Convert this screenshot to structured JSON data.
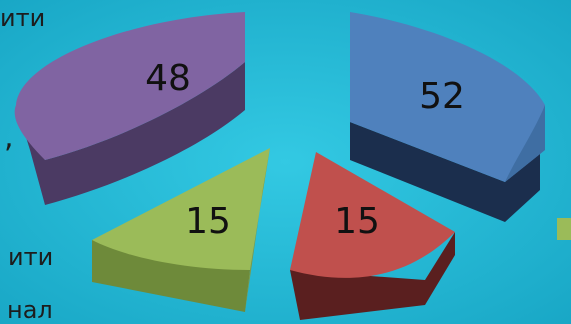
{
  "chart_data": {
    "type": "pie",
    "title": "",
    "slices": [
      {
        "label": "",
        "value": 52,
        "color": "#4f81bd"
      },
      {
        "label": "",
        "value": 15,
        "color": "#c0504d"
      },
      {
        "label": "",
        "value": 15,
        "color": "#9bbb59"
      },
      {
        "label": "",
        "value": 48,
        "color": "#8064a2"
      }
    ],
    "exploded": true,
    "legend": "right (partially visible)"
  },
  "background_text": [
    "ити",
    ",",
    "ити",
    "нал"
  ],
  "colors": {
    "background": "#1fb7d3",
    "legend_swatch": "#9bbb59"
  }
}
